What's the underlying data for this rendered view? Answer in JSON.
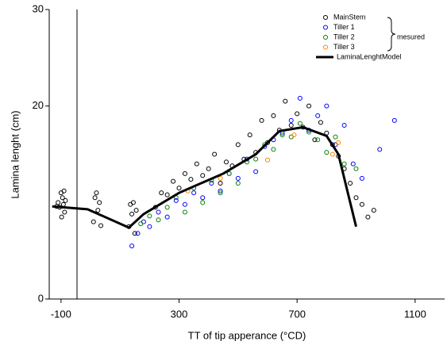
{
  "chart_data": {
    "type": "scatter",
    "xlabel": "TT of tip apperance (°CD)",
    "ylabel": "Lamina lenght (cm)",
    "annotation": "mesured",
    "xlim": [
      -140,
      1200
    ],
    "xticks": [
      -100,
      300,
      700,
      1100
    ],
    "ylim": [
      0,
      30
    ],
    "yticks": [
      0,
      20,
      30
    ],
    "legend": "upper right",
    "series": [
      {
        "name": "MainStem",
        "color": "#000000",
        "x": [
          -110,
          -105,
          -100,
          -98,
          -95,
          -92,
          -90,
          -88,
          -85,
          -115,
          10,
          15,
          20,
          25,
          30,
          35,
          130,
          135,
          140,
          145,
          150,
          155,
          220,
          240,
          260,
          280,
          300,
          320,
          340,
          360,
          380,
          400,
          420,
          440,
          460,
          480,
          500,
          520,
          540,
          560,
          580,
          600,
          620,
          640,
          660,
          680,
          700,
          720,
          740,
          760,
          780,
          800,
          820,
          840,
          860,
          880,
          900,
          920,
          940,
          960
        ],
        "values": [
          10,
          9.5,
          11,
          8.5,
          10.5,
          9.8,
          11.2,
          9,
          10.2,
          9.6,
          8,
          10.5,
          11,
          9.2,
          10,
          7.6,
          7.5,
          9.8,
          8.8,
          10,
          6.8,
          9.2,
          9.5,
          11,
          10.8,
          12.2,
          11.5,
          13,
          12.4,
          14,
          12.8,
          13.5,
          15,
          12,
          14.2,
          13.8,
          16,
          14.5,
          17,
          15.2,
          18.5,
          16.2,
          19,
          17.5,
          20.5,
          18,
          19.2,
          17.8,
          20,
          16.5,
          18.3,
          17.2,
          16,
          14.8,
          13.5,
          12,
          10.5,
          9.8,
          8.5,
          9.2
        ]
      },
      {
        "name": "Tiller 1",
        "color": "#0000ff",
        "x": [
          140,
          160,
          180,
          200,
          230,
          260,
          290,
          320,
          350,
          380,
          410,
          440,
          470,
          500,
          530,
          560,
          590,
          620,
          650,
          680,
          710,
          740,
          770,
          800,
          830,
          860,
          890,
          920,
          980,
          1030
        ],
        "values": [
          5.5,
          6.8,
          8,
          7.5,
          9,
          8.5,
          10.2,
          9.8,
          11,
          10.5,
          12,
          11.2,
          13,
          12.5,
          14.5,
          13.2,
          15.8,
          16.5,
          17.2,
          18.5,
          20.8,
          17.5,
          19,
          20,
          16,
          18,
          14,
          12.5,
          15.5,
          18.5
        ]
      },
      {
        "name": "Tiller 2",
        "color": "#008000",
        "x": [
          170,
          200,
          230,
          260,
          290,
          320,
          350,
          380,
          410,
          440,
          470,
          500,
          530,
          560,
          590,
          620,
          650,
          680,
          710,
          740,
          770,
          800,
          830,
          860,
          900
        ],
        "values": [
          7.8,
          8.6,
          8.2,
          9.5,
          10.5,
          9,
          11.5,
          10,
          12.3,
          11,
          13,
          12,
          14.2,
          14.5,
          16,
          15.5,
          17,
          16.8,
          18.2,
          17.3,
          16.5,
          15.2,
          16.8,
          14,
          13.5
        ]
      },
      {
        "name": "Tiller 3",
        "color": "#ff8000",
        "x": [
          330,
          440,
          600,
          690,
          820,
          840
        ],
        "values": [
          11.2,
          12.5,
          14.4,
          17,
          15,
          16.2
        ]
      },
      {
        "name": "LaminaLenghtModel",
        "color": "#000000",
        "line": true,
        "x": [
          -130,
          -10,
          130,
          180,
          300,
          450,
          560,
          640,
          720,
          800,
          840,
          900
        ],
        "values": [
          9.6,
          9.3,
          7.4,
          8.8,
          11,
          13,
          15,
          17.4,
          17.8,
          16.9,
          15,
          7.5
        ]
      }
    ]
  }
}
